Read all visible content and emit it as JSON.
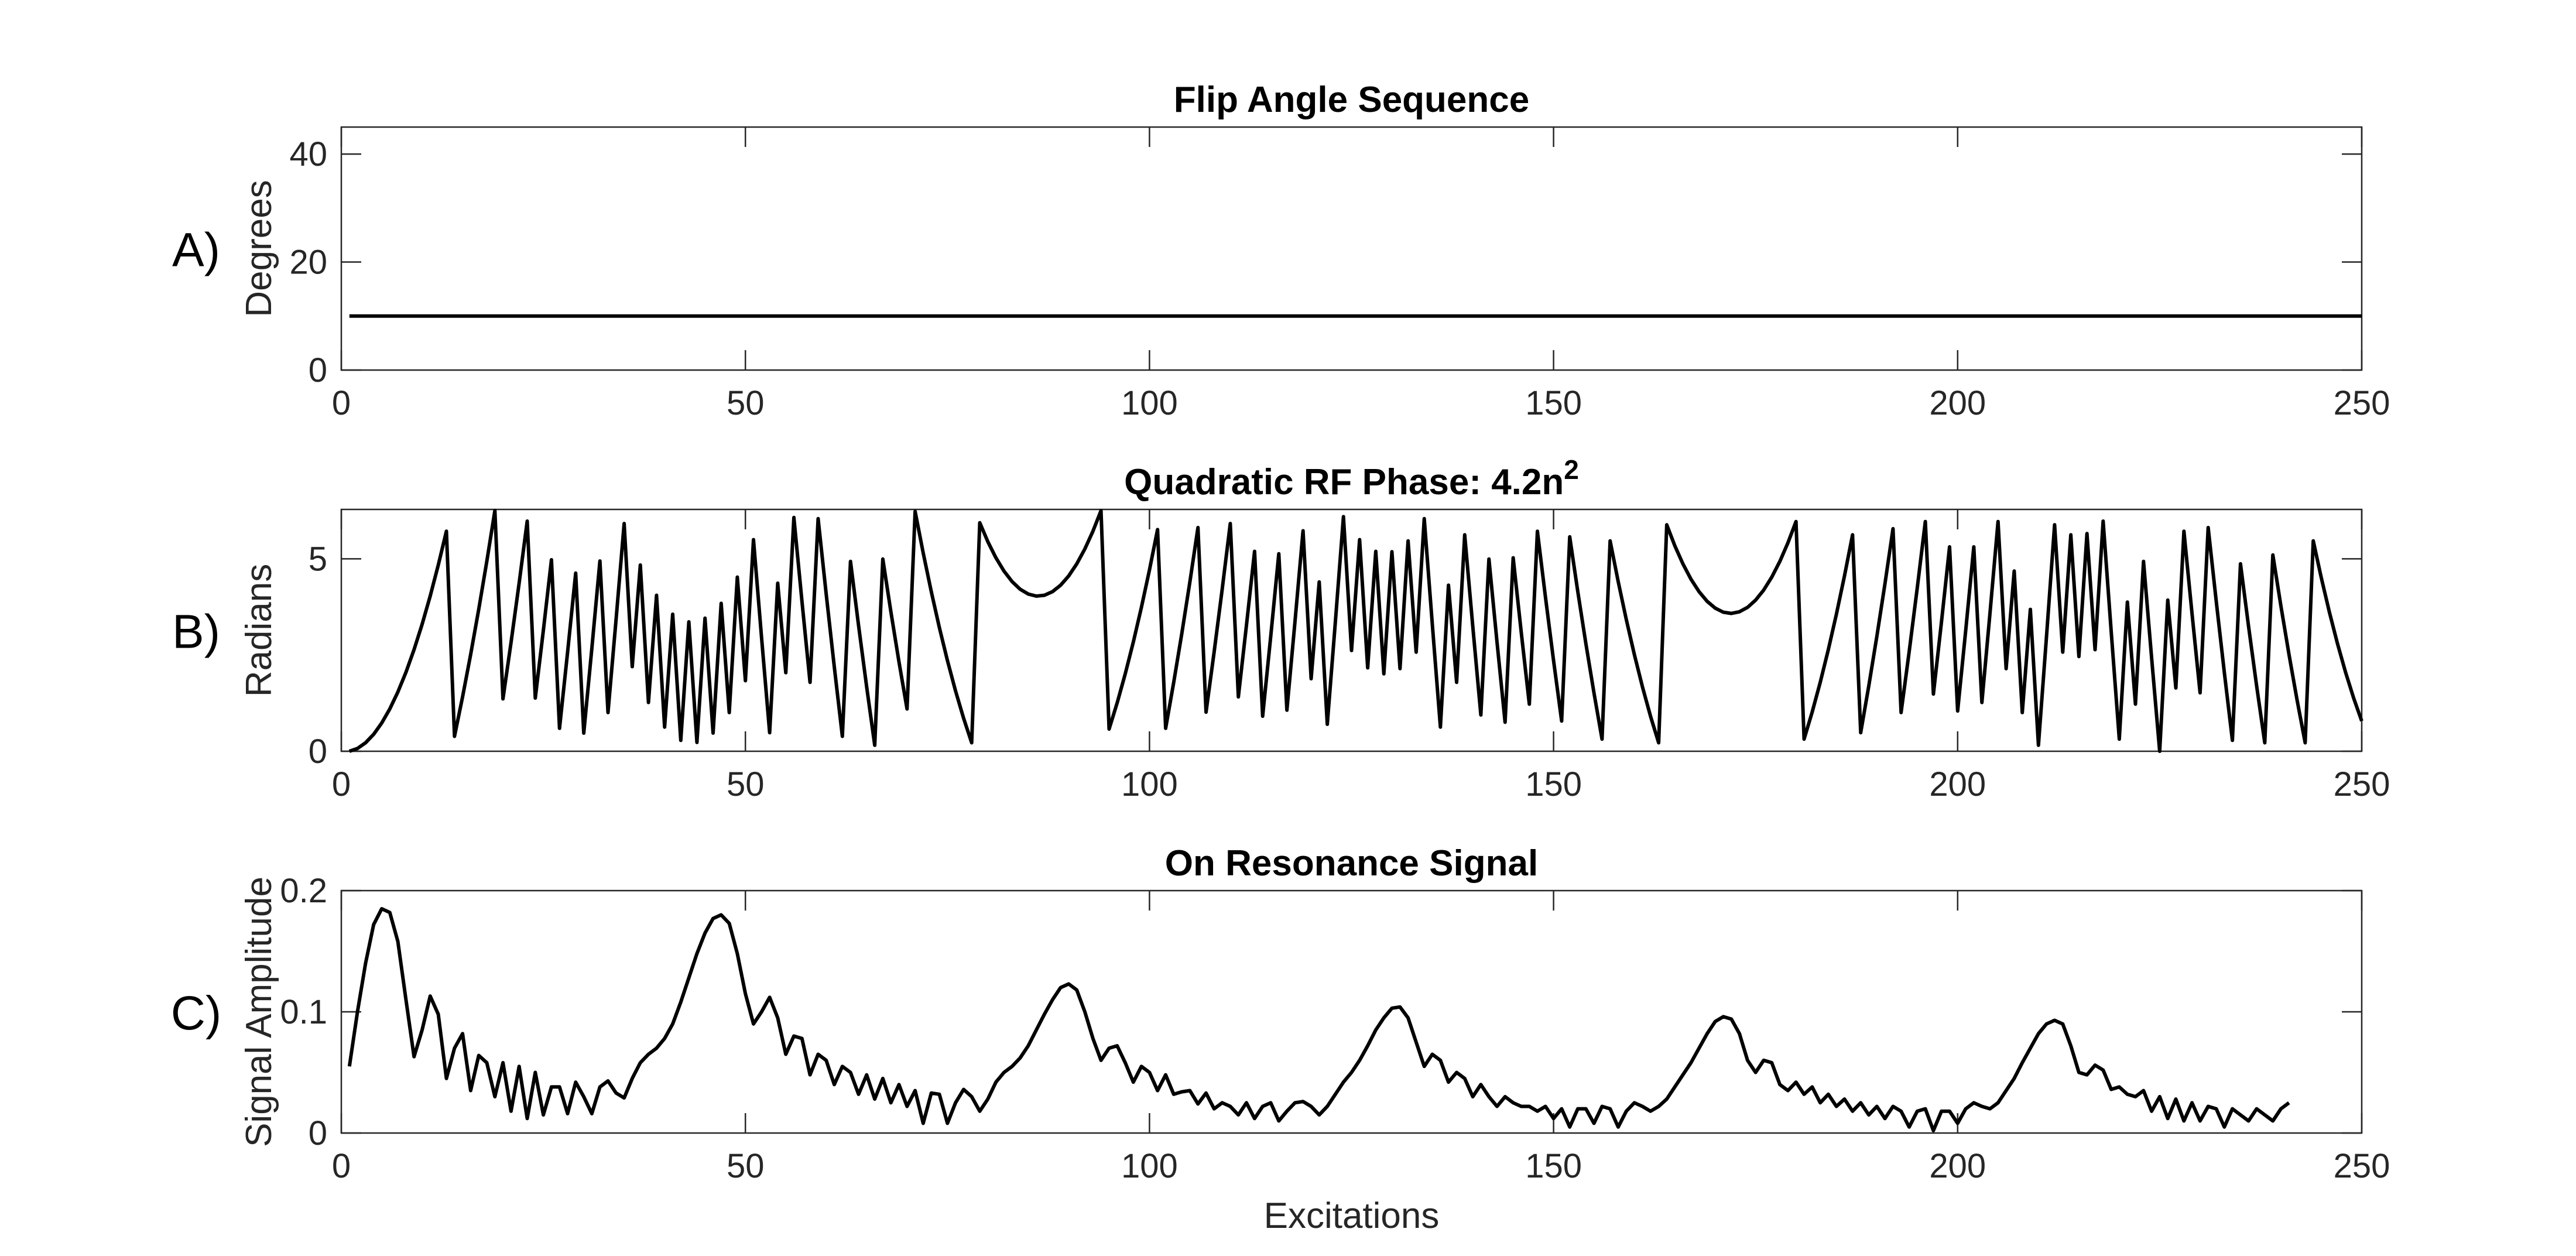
{
  "figure": {
    "xlabel": "Excitations"
  },
  "chart_data": [
    {
      "type": "line",
      "panel_label": "A)",
      "title": "Flip Angle Sequence",
      "title_sup": "",
      "xlabel": "",
      "ylabel": "Degrees",
      "xlim": [
        0,
        250
      ],
      "ylim": [
        0,
        45
      ],
      "xticks": [
        0,
        50,
        100,
        150,
        200,
        250
      ],
      "yticks": [
        0,
        20,
        40
      ],
      "grid": false,
      "series": [
        {
          "values": [
            [
              1,
              10
            ],
            [
              250,
              10
            ]
          ]
        }
      ]
    },
    {
      "type": "line",
      "panel_label": "B)",
      "title": "Quadratic RF Phase: 4.2n",
      "title_sup": "2",
      "xlabel": "",
      "ylabel": "Radians",
      "xlim": [
        0,
        250
      ],
      "ylim": [
        0,
        6.2832
      ],
      "xticks": [
        0,
        50,
        100,
        150,
        200,
        250
      ],
      "yticks": [
        0,
        5
      ],
      "grid": false,
      "phase_increment_deg": 4.2,
      "series": [
        {
          "values": []
        }
      ]
    },
    {
      "type": "line",
      "panel_label": "C)",
      "title": "On Resonance Signal",
      "title_sup": "",
      "xlabel": "Excitations",
      "ylabel": "Signal Amplitude",
      "xlim": [
        0,
        250
      ],
      "ylim": [
        0,
        0.2
      ],
      "xticks": [
        0,
        50,
        100,
        150,
        200,
        250
      ],
      "yticks": [
        0,
        0.1,
        0.2
      ],
      "grid": false,
      "series": [
        {
          "values": [
            [
              1,
              0.055
            ],
            [
              2,
              0.1
            ],
            [
              3,
              0.14
            ],
            [
              4,
              0.172
            ],
            [
              5,
              0.185
            ],
            [
              6,
              0.182
            ],
            [
              7,
              0.158
            ],
            [
              8,
              0.11
            ],
            [
              9,
              0.063
            ],
            [
              10,
              0.085
            ],
            [
              11,
              0.113
            ],
            [
              12,
              0.098
            ],
            [
              13,
              0.045
            ],
            [
              14,
              0.07
            ],
            [
              15,
              0.082
            ],
            [
              16,
              0.035
            ],
            [
              17,
              0.064
            ],
            [
              18,
              0.058
            ],
            [
              19,
              0.03
            ],
            [
              20,
              0.058
            ],
            [
              21,
              0.018
            ],
            [
              22,
              0.055
            ],
            [
              23,
              0.012
            ],
            [
              24,
              0.05
            ],
            [
              25,
              0.015
            ],
            [
              26,
              0.038
            ],
            [
              27,
              0.038
            ],
            [
              28,
              0.016
            ],
            [
              29,
              0.042
            ],
            [
              30,
              0.03
            ],
            [
              31,
              0.016
            ],
            [
              32,
              0.038
            ],
            [
              33,
              0.043
            ],
            [
              34,
              0.033
            ],
            [
              35,
              0.029
            ],
            [
              36,
              0.045
            ],
            [
              37,
              0.058
            ],
            [
              38,
              0.065
            ],
            [
              39,
              0.07
            ],
            [
              40,
              0.078
            ],
            [
              41,
              0.09
            ],
            [
              42,
              0.108
            ],
            [
              43,
              0.128
            ],
            [
              44,
              0.148
            ],
            [
              45,
              0.165
            ],
            [
              46,
              0.177
            ],
            [
              47,
              0.18
            ],
            [
              48,
              0.173
            ],
            [
              49,
              0.148
            ],
            [
              50,
              0.115
            ],
            [
              51,
              0.09
            ],
            [
              52,
              0.1
            ],
            [
              53,
              0.112
            ],
            [
              54,
              0.095
            ],
            [
              55,
              0.065
            ],
            [
              56,
              0.08
            ],
            [
              57,
              0.078
            ],
            [
              58,
              0.048
            ],
            [
              59,
              0.065
            ],
            [
              60,
              0.06
            ],
            [
              61,
              0.04
            ],
            [
              62,
              0.055
            ],
            [
              63,
              0.05
            ],
            [
              64,
              0.032
            ],
            [
              65,
              0.048
            ],
            [
              66,
              0.028
            ],
            [
              67,
              0.045
            ],
            [
              68,
              0.025
            ],
            [
              69,
              0.04
            ],
            [
              70,
              0.022
            ],
            [
              71,
              0.035
            ],
            [
              72,
              0.008
            ],
            [
              73,
              0.033
            ],
            [
              74,
              0.032
            ],
            [
              75,
              0.008
            ],
            [
              76,
              0.025
            ],
            [
              77,
              0.036
            ],
            [
              78,
              0.03
            ],
            [
              79,
              0.018
            ],
            [
              80,
              0.028
            ],
            [
              81,
              0.042
            ],
            [
              82,
              0.05
            ],
            [
              83,
              0.055
            ],
            [
              84,
              0.062
            ],
            [
              85,
              0.072
            ],
            [
              86,
              0.085
            ],
            [
              87,
              0.098
            ],
            [
              88,
              0.11
            ],
            [
              89,
              0.12
            ],
            [
              90,
              0.123
            ],
            [
              91,
              0.118
            ],
            [
              92,
              0.1
            ],
            [
              93,
              0.078
            ],
            [
              94,
              0.06
            ],
            [
              95,
              0.07
            ],
            [
              96,
              0.072
            ],
            [
              97,
              0.058
            ],
            [
              98,
              0.042
            ],
            [
              99,
              0.055
            ],
            [
              100,
              0.05
            ],
            [
              101,
              0.035
            ],
            [
              102,
              0.048
            ],
            [
              103,
              0.032
            ],
            [
              104,
              0.034
            ],
            [
              105,
              0.035
            ],
            [
              106,
              0.024
            ],
            [
              107,
              0.033
            ],
            [
              108,
              0.02
            ],
            [
              109,
              0.025
            ],
            [
              110,
              0.022
            ],
            [
              111,
              0.015
            ],
            [
              112,
              0.025
            ],
            [
              113,
              0.012
            ],
            [
              114,
              0.022
            ],
            [
              115,
              0.025
            ],
            [
              116,
              0.01
            ],
            [
              117,
              0.018
            ],
            [
              118,
              0.025
            ],
            [
              119,
              0.026
            ],
            [
              120,
              0.022
            ],
            [
              121,
              0.015
            ],
            [
              122,
              0.022
            ],
            [
              123,
              0.032
            ],
            [
              124,
              0.042
            ],
            [
              125,
              0.05
            ],
            [
              126,
              0.06
            ],
            [
              127,
              0.072
            ],
            [
              128,
              0.085
            ],
            [
              129,
              0.095
            ],
            [
              130,
              0.103
            ],
            [
              131,
              0.104
            ],
            [
              132,
              0.095
            ],
            [
              133,
              0.075
            ],
            [
              134,
              0.055
            ],
            [
              135,
              0.065
            ],
            [
              136,
              0.06
            ],
            [
              137,
              0.042
            ],
            [
              138,
              0.05
            ],
            [
              139,
              0.045
            ],
            [
              140,
              0.03
            ],
            [
              141,
              0.04
            ],
            [
              142,
              0.03
            ],
            [
              143,
              0.022
            ],
            [
              144,
              0.03
            ],
            [
              145,
              0.025
            ],
            [
              146,
              0.022
            ],
            [
              147,
              0.022
            ],
            [
              148,
              0.018
            ],
            [
              149,
              0.022
            ],
            [
              150,
              0.012
            ],
            [
              151,
              0.02
            ],
            [
              152,
              0.005
            ],
            [
              153,
              0.02
            ],
            [
              154,
              0.02
            ],
            [
              155,
              0.008
            ],
            [
              156,
              0.022
            ],
            [
              157,
              0.02
            ],
            [
              158,
              0.005
            ],
            [
              159,
              0.018
            ],
            [
              160,
              0.025
            ],
            [
              161,
              0.022
            ],
            [
              162,
              0.018
            ],
            [
              163,
              0.022
            ],
            [
              164,
              0.028
            ],
            [
              165,
              0.038
            ],
            [
              166,
              0.048
            ],
            [
              167,
              0.058
            ],
            [
              168,
              0.07
            ],
            [
              169,
              0.082
            ],
            [
              170,
              0.092
            ],
            [
              171,
              0.096
            ],
            [
              172,
              0.094
            ],
            [
              173,
              0.082
            ],
            [
              174,
              0.06
            ],
            [
              175,
              0.05
            ],
            [
              176,
              0.06
            ],
            [
              177,
              0.058
            ],
            [
              178,
              0.04
            ],
            [
              179,
              0.035
            ],
            [
              180,
              0.042
            ],
            [
              181,
              0.032
            ],
            [
              182,
              0.038
            ],
            [
              183,
              0.025
            ],
            [
              184,
              0.032
            ],
            [
              185,
              0.022
            ],
            [
              186,
              0.028
            ],
            [
              187,
              0.018
            ],
            [
              188,
              0.025
            ],
            [
              189,
              0.015
            ],
            [
              190,
              0.022
            ],
            [
              191,
              0.012
            ],
            [
              192,
              0.022
            ],
            [
              193,
              0.018
            ],
            [
              194,
              0.005
            ],
            [
              195,
              0.018
            ],
            [
              196,
              0.02
            ],
            [
              197,
              0.002
            ],
            [
              198,
              0.018
            ],
            [
              199,
              0.018
            ],
            [
              200,
              0.008
            ],
            [
              201,
              0.02
            ],
            [
              202,
              0.025
            ],
            [
              203,
              0.022
            ],
            [
              204,
              0.02
            ],
            [
              205,
              0.025
            ],
            [
              206,
              0.035
            ],
            [
              207,
              0.045
            ],
            [
              208,
              0.058
            ],
            [
              209,
              0.07
            ],
            [
              210,
              0.082
            ],
            [
              211,
              0.09
            ],
            [
              212,
              0.093
            ],
            [
              213,
              0.09
            ],
            [
              214,
              0.072
            ],
            [
              215,
              0.05
            ],
            [
              216,
              0.048
            ],
            [
              217,
              0.056
            ],
            [
              218,
              0.052
            ],
            [
              219,
              0.036
            ],
            [
              220,
              0.038
            ],
            [
              221,
              0.032
            ],
            [
              222,
              0.03
            ],
            [
              223,
              0.035
            ],
            [
              224,
              0.018
            ],
            [
              225,
              0.03
            ],
            [
              226,
              0.012
            ],
            [
              227,
              0.028
            ],
            [
              228,
              0.01
            ],
            [
              229,
              0.025
            ],
            [
              230,
              0.01
            ],
            [
              231,
              0.022
            ],
            [
              232,
              0.02
            ],
            [
              233,
              0.005
            ],
            [
              234,
              0.02
            ],
            [
              235,
              0.015
            ],
            [
              236,
              0.01
            ],
            [
              237,
              0.02
            ],
            [
              238,
              0.015
            ],
            [
              239,
              0.01
            ],
            [
              240,
              0.02
            ],
            [
              241,
              0.025
            ]
          ]
        }
      ]
    }
  ]
}
